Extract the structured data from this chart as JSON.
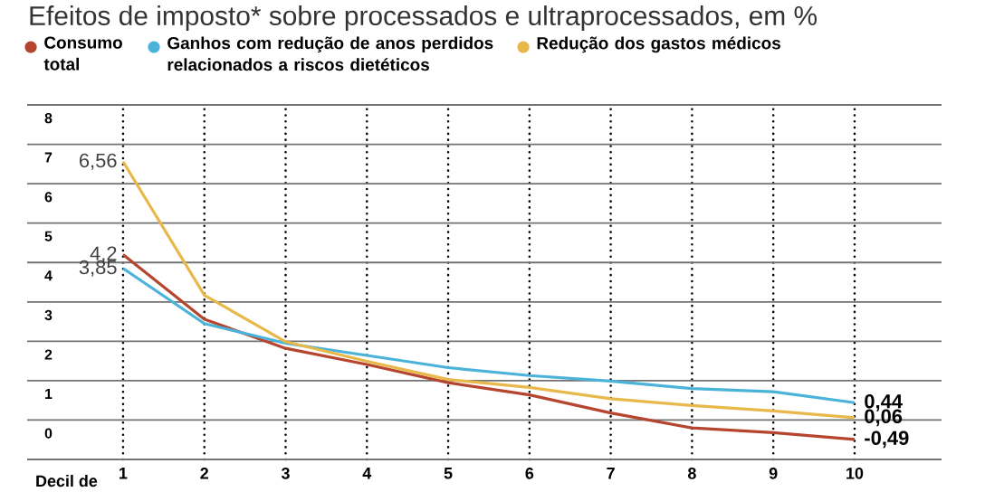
{
  "chart_data": {
    "type": "line",
    "title": "Efeitos de imposto* sobre processados e ultraprocessados, em %",
    "xlabel": "Decil de",
    "categories": [
      "1",
      "2",
      "3",
      "4",
      "5",
      "6",
      "7",
      "8",
      "9",
      "10"
    ],
    "series": [
      {
        "name": "Consumo total",
        "color": "#b5452f",
        "values": [
          4.2,
          2.56,
          1.82,
          1.41,
          0.95,
          0.64,
          0.18,
          -0.2,
          -0.32,
          -0.49
        ]
      },
      {
        "name": "Ganhos com redução de anos perdidos relacionados a riscos dietéticos",
        "color": "#4bb3d9",
        "values": [
          3.85,
          2.45,
          1.95,
          1.64,
          1.33,
          1.13,
          0.99,
          0.8,
          0.72,
          0.44
        ]
      },
      {
        "name": "Redução dos gastos médicos",
        "color": "#e8b84a",
        "values": [
          6.56,
          3.17,
          1.99,
          1.49,
          1.03,
          0.83,
          0.54,
          0.37,
          0.23,
          0.06
        ]
      }
    ],
    "ylim": [
      -1,
      8
    ],
    "yticks": [
      {
        "value": -1,
        "label": null
      },
      0,
      1,
      2,
      3,
      4,
      5,
      6,
      7,
      8
    ],
    "grid": true,
    "legend": "top",
    "marker": "none",
    "line_style": "solid",
    "annotations": [
      {
        "text": "6,56",
        "x": "1",
        "y": 6.56
      },
      {
        "text": "4,2",
        "x": "1",
        "y": 4.2
      },
      {
        "text": "3,85",
        "x": "1",
        "y": 3.85
      },
      {
        "text": "0,44",
        "x": "10",
        "y": 0.44
      },
      {
        "text": "0,06",
        "x": "10",
        "y": 0.06
      },
      {
        "text": "-0,49",
        "x": "10",
        "y": -0.49
      }
    ]
  }
}
